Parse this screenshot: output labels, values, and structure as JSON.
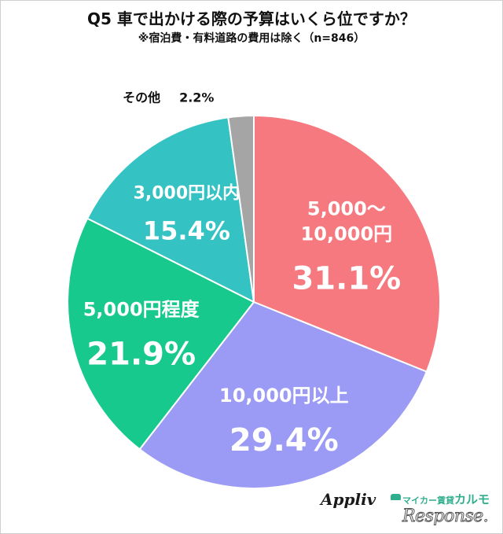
{
  "header": {
    "title": "Q5 車で出かける際の予算はいくら位ですか？",
    "subtitle": "※宿泊費・有料道路の費用は除く（n=846）"
  },
  "chart_data": {
    "type": "pie",
    "title": "Q5 車で出かける際の予算はいくら位ですか？",
    "subtitle": "※宿泊費・有料道路の費用は除く（n=846）",
    "start": "12 o'clock, clockwise",
    "slices": [
      {
        "lines": [
          "5,000～",
          "10,000円"
        ],
        "value": 31.1,
        "value_label": "31.1%",
        "color": "#f6797f"
      },
      {
        "lines": [
          "10,000円以上"
        ],
        "value": 29.4,
        "value_label": "29.4%",
        "color": "#9b9bf6"
      },
      {
        "lines": [
          "5,000円程度"
        ],
        "value": 21.9,
        "value_label": "21.9%",
        "color": "#18c98e"
      },
      {
        "lines": [
          "3,000円以内"
        ],
        "value": 15.4,
        "value_label": "15.4%",
        "color": "#34c2c3"
      },
      {
        "lines": [
          "その他"
        ],
        "value": 2.2,
        "value_label": "2.2%",
        "color": "#a5a5a5",
        "label_outside": true
      }
    ]
  },
  "logos": {
    "applivi": "Appliv",
    "carmo_prefix": "マイカー賃貸",
    "carmo_name": "カルモ",
    "response": "Response."
  }
}
